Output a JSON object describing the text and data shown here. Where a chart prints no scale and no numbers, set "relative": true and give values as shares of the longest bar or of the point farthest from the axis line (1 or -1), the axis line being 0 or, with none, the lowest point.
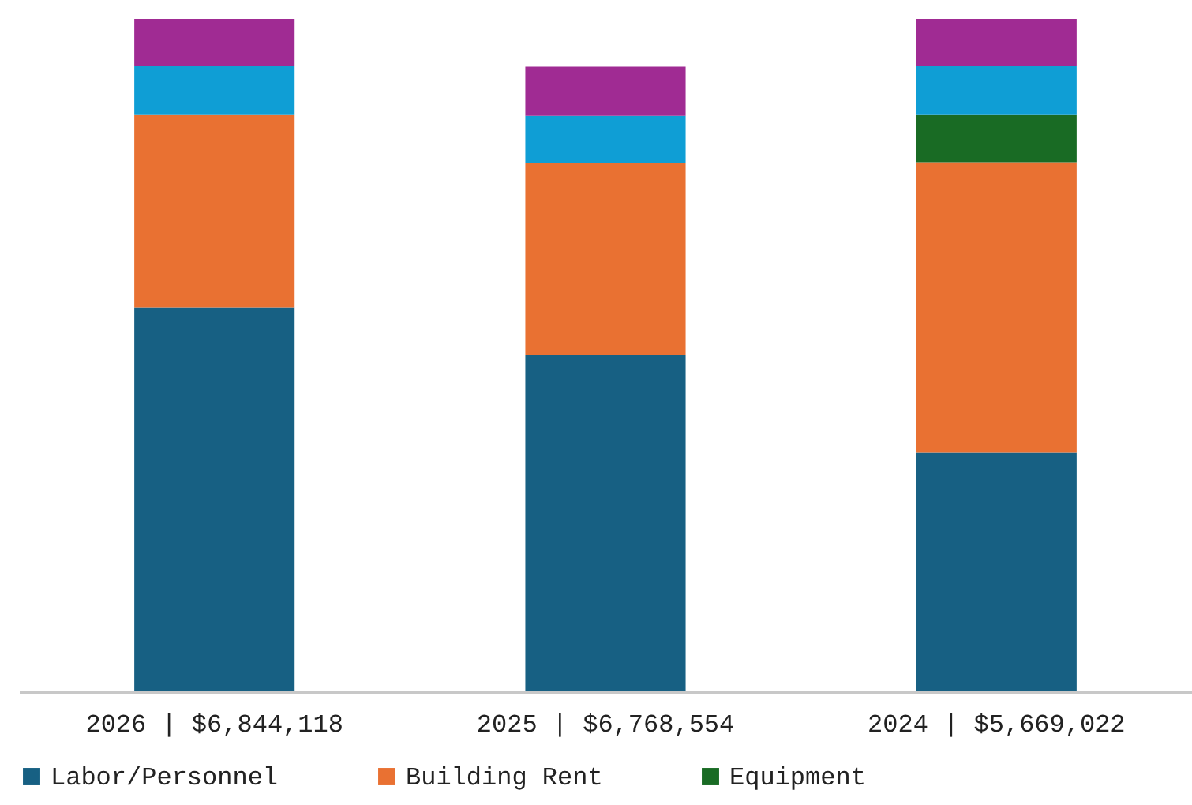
{
  "chart_data": {
    "type": "bar",
    "stacked": true,
    "relative": true,
    "legend": "bottom",
    "categories": [
      "2026 | $6,844,118",
      "2025 | $6,768,554",
      "2024 | $5,669,022"
    ],
    "series": [
      {
        "name": "Labor/Personnel",
        "color": "#176083",
        "values": [
          0.571,
          0.5,
          0.355
        ]
      },
      {
        "name": "Building Rent",
        "color": "#e97132",
        "values": [
          0.286,
          0.286,
          0.432
        ]
      },
      {
        "name": "Equipment",
        "color": "#196b24",
        "values": [
          null,
          null,
          0.07
        ]
      },
      {
        "color": "#0f9ed5",
        "values": [
          0.073,
          0.07,
          0.073
        ]
      },
      {
        "color": "#a02b93",
        "values": [
          0.07,
          0.073,
          0.07
        ]
      }
    ]
  }
}
